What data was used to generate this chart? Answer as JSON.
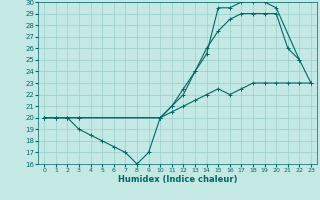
{
  "xlabel": "Humidex (Indice chaleur)",
  "xlim": [
    -0.5,
    23.5
  ],
  "ylim": [
    16,
    30
  ],
  "yticks": [
    16,
    17,
    18,
    19,
    20,
    21,
    22,
    23,
    24,
    25,
    26,
    27,
    28,
    29,
    30
  ],
  "xticks": [
    0,
    1,
    2,
    3,
    4,
    5,
    6,
    7,
    8,
    9,
    10,
    11,
    12,
    13,
    14,
    15,
    16,
    17,
    18,
    19,
    20,
    21,
    22,
    23
  ],
  "bg_color": "#c4e8e4",
  "grid_color": "#9accc8",
  "line_color": "#006868",
  "lines": [
    {
      "x": [
        0,
        1,
        2,
        3,
        10,
        11,
        12,
        13,
        14,
        15,
        16,
        17,
        18,
        19,
        20,
        22,
        23
      ],
      "y": [
        20,
        20,
        20,
        20,
        20,
        21,
        22,
        24,
        25.5,
        29.5,
        29.5,
        30,
        30,
        30,
        29.5,
        25,
        23
      ]
    },
    {
      "x": [
        0,
        1,
        2,
        3,
        10,
        11,
        12,
        13,
        14,
        15,
        16,
        17,
        18,
        19,
        20,
        21,
        22
      ],
      "y": [
        20,
        20,
        20,
        20,
        20,
        21,
        22.5,
        24,
        26,
        27.5,
        28.5,
        29,
        29,
        29,
        29,
        26,
        25
      ]
    },
    {
      "x": [
        0,
        1,
        2,
        3,
        4,
        5,
        6,
        7,
        8,
        9,
        10,
        11,
        12,
        13,
        14,
        15,
        16,
        17,
        18,
        19,
        20,
        21,
        22,
        23
      ],
      "y": [
        20,
        20,
        20,
        19,
        18.5,
        18,
        17.5,
        17,
        16,
        17,
        20,
        20.5,
        21,
        21.5,
        22,
        22.5,
        22,
        22.5,
        23,
        23,
        23,
        23,
        23,
        23
      ]
    }
  ]
}
